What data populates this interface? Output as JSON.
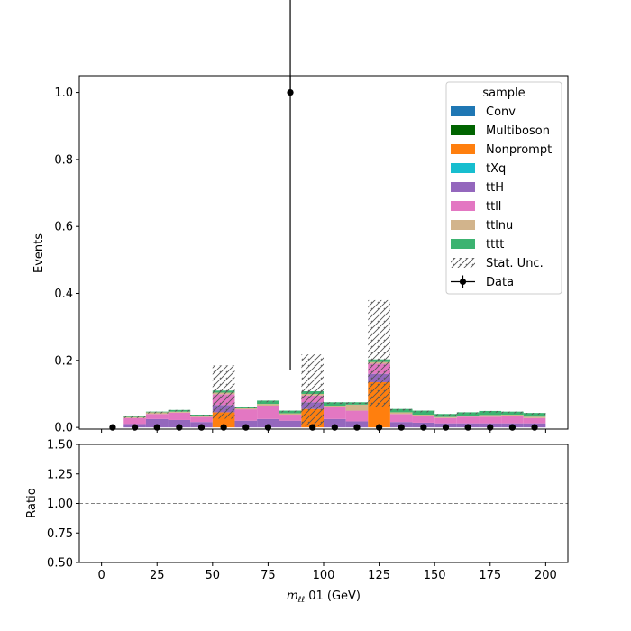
{
  "chart_data": [
    {
      "type": "bar",
      "stacked": true,
      "xlabel_math": "m",
      "xlabel_sub": "ℓℓ",
      "xlabel_rest": " 01 (GeV)",
      "ylabel": "Events",
      "xlim": [
        -10,
        210
      ],
      "ylim": [
        -0.005,
        1.05
      ],
      "xticks": [
        0,
        25,
        50,
        75,
        100,
        125,
        150,
        175,
        200
      ],
      "yticks": [
        0.0,
        0.2,
        0.4,
        0.6,
        0.8,
        1.0
      ],
      "ytick_labels": [
        "0.0",
        "0.2",
        "0.4",
        "0.6",
        "0.8",
        "1.0"
      ],
      "bin_edges": [
        0,
        10,
        20,
        30,
        40,
        50,
        60,
        70,
        80,
        90,
        100,
        110,
        120,
        130,
        140,
        150,
        160,
        170,
        180,
        190,
        200
      ],
      "series": [
        {
          "name": "Conv",
          "color": "#1f77b4",
          "values": [
            0,
            0,
            0,
            0,
            0,
            0,
            0,
            0,
            0,
            0,
            0,
            0,
            0,
            0,
            0,
            0,
            0,
            0,
            0,
            0
          ]
        },
        {
          "name": "Multiboson",
          "color": "#006400",
          "values": [
            0,
            0,
            0,
            0,
            0,
            0,
            0,
            0,
            0,
            0,
            0,
            0,
            0,
            0,
            0,
            0,
            0,
            0,
            0,
            0
          ]
        },
        {
          "name": "Nonprompt",
          "color": "#ff7f0e",
          "values": [
            0,
            0,
            0,
            0,
            0,
            0.045,
            0,
            0,
            0,
            0.055,
            0,
            0,
            0.135,
            0,
            0,
            0,
            0,
            0,
            0,
            0
          ]
        },
        {
          "name": "tXq",
          "color": "#17becf",
          "values": [
            0,
            0,
            0,
            0,
            0,
            0,
            0,
            0,
            0,
            0,
            0,
            0,
            0,
            0,
            0,
            0,
            0,
            0,
            0,
            0
          ]
        },
        {
          "name": "ttH",
          "color": "#9467bd",
          "values": [
            0,
            0.01,
            0.025,
            0.022,
            0.016,
            0.022,
            0.02,
            0.025,
            0.02,
            0.02,
            0.025,
            0.018,
            0.025,
            0.016,
            0.014,
            0.012,
            0.012,
            0.012,
            0.012,
            0.012
          ]
        },
        {
          "name": "ttll",
          "color": "#e377c2",
          "values": [
            0,
            0.018,
            0.015,
            0.022,
            0.015,
            0.032,
            0.034,
            0.04,
            0.018,
            0.02,
            0.035,
            0.032,
            0.03,
            0.024,
            0.02,
            0.016,
            0.02,
            0.02,
            0.022,
            0.016
          ]
        },
        {
          "name": "ttlnu",
          "color": "#d2b48c",
          "values": [
            0,
            0.003,
            0.005,
            0.003,
            0.004,
            0.005,
            0.003,
            0.005,
            0.004,
            0.005,
            0.005,
            0.018,
            0.005,
            0.005,
            0.004,
            0.003,
            0.003,
            0.005,
            0.004,
            0.004
          ]
        },
        {
          "name": "tttt",
          "color": "#3cb371",
          "values": [
            0,
            0.002,
            0.002,
            0.005,
            0.003,
            0.006,
            0.005,
            0.01,
            0.008,
            0.008,
            0.01,
            0.007,
            0.008,
            0.01,
            0.012,
            0.009,
            0.01,
            0.012,
            0.009,
            0.011
          ]
        }
      ],
      "stat_unc": {
        "name": "Stat. Unc.",
        "low": [
          0,
          0.033,
          0.047,
          0.052,
          0.038,
          0.075,
          0.062,
          0.08,
          0.05,
          0.068,
          0.075,
          0.075,
          0.155,
          0.055,
          0.05,
          0.04,
          0.045,
          0.049,
          0.047,
          0.043
        ],
        "high": [
          0,
          0.033,
          0.047,
          0.052,
          0.038,
          0.185,
          0.062,
          0.08,
          0.05,
          0.218,
          0.075,
          0.075,
          0.38,
          0.055,
          0.05,
          0.04,
          0.045,
          0.049,
          0.047,
          0.043
        ]
      },
      "data_points": {
        "name": "Data",
        "x": [
          5,
          15,
          25,
          35,
          45,
          55,
          65,
          75,
          85,
          95,
          105,
          115,
          125,
          135,
          145,
          155,
          165,
          175,
          185,
          195
        ],
        "y": [
          0,
          0,
          0,
          0,
          0,
          0,
          0,
          0,
          1,
          0,
          0,
          0,
          0,
          0,
          0,
          0,
          0,
          0,
          0,
          0
        ],
        "err": [
          0,
          0,
          0,
          0,
          0,
          0,
          0,
          0,
          0.83,
          0,
          0,
          0,
          0,
          0,
          0,
          0,
          0,
          0,
          0,
          0
        ]
      },
      "legend": {
        "title": "sample",
        "location": "top-right"
      },
      "grid": false
    },
    {
      "type": "line",
      "ylabel": "Ratio",
      "xlabel": "",
      "ylim": [
        0.5,
        1.5
      ],
      "yticks": [
        0.5,
        0.75,
        1.0,
        1.25,
        1.5
      ],
      "ytick_labels": [
        "0.50",
        "0.75",
        "1.00",
        "1.25",
        "1.50"
      ],
      "xtick_labels": [
        "0",
        "25",
        "50",
        "75",
        "100",
        "125",
        "150",
        "175",
        "200"
      ],
      "reference_line": 1.0,
      "reference_color": "#808080"
    }
  ]
}
